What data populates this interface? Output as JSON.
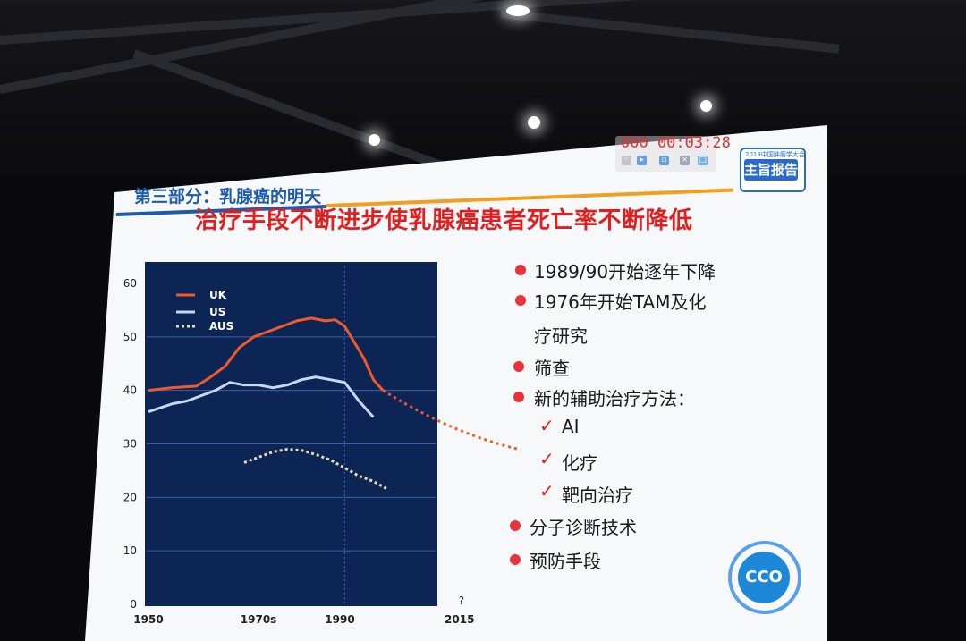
{
  "slide": {
    "section_title": "第三部分：乳腺癌的明天",
    "headline": "治疗手段不断进步使乳腺癌患者死亡率不断降低",
    "timer": "000 00:03:28",
    "badge_top": "2019中国肿瘤学大会",
    "badge_label": "主旨报告",
    "logo_text": "CCO"
  },
  "bullets": [
    {
      "text": "1989/90开始逐年下降",
      "marker": "dot"
    },
    {
      "text": "1976年开始TAM及化",
      "marker": "dot"
    },
    {
      "text": "疗研究",
      "marker": "none"
    },
    {
      "text": "筛查",
      "marker": "dot"
    },
    {
      "text": "新的辅助治疗方法：",
      "marker": "dot"
    },
    {
      "text": "AI",
      "marker": "check"
    },
    {
      "text": "化疗",
      "marker": "check"
    },
    {
      "text": "靶向治疗",
      "marker": "check"
    },
    {
      "text": "分子诊断技术",
      "marker": "dot"
    },
    {
      "text": "预防手段",
      "marker": "dot"
    }
  ],
  "colors": {
    "uk": "#f0592a",
    "us": "#c8d8f0",
    "aus": "#e8dcb0",
    "panel": "#0d2555",
    "accent_red": "#e02020",
    "accent_blue": "#1e5aa8"
  },
  "chart_data": {
    "type": "line",
    "ylim": [
      0,
      60
    ],
    "yticks": [
      "0",
      "10",
      "20",
      "30",
      "40",
      "50",
      "60"
    ],
    "xticks": [
      {
        "label": "1950",
        "x": 1950
      },
      {
        "label": "1970s",
        "x": 1973
      },
      {
        "label": "1990",
        "x": 1990
      },
      {
        "label": "2015",
        "x": 2015
      }
    ],
    "question_mark": "?",
    "series": [
      {
        "name": "UK",
        "x": [
          1950,
          1955,
          1960,
          1963,
          1966,
          1969,
          1972,
          1975,
          1978,
          1981,
          1984,
          1987,
          1989,
          1991,
          1993,
          1995,
          1997,
          1999
        ],
        "y": [
          40,
          40.5,
          40.8,
          42.5,
          44.5,
          48,
          50,
          51,
          52,
          53,
          53.5,
          53,
          53.2,
          52,
          49,
          46,
          42,
          40
        ]
      },
      {
        "name": "US",
        "x": [
          1950,
          1955,
          1958,
          1961,
          1964,
          1967,
          1970,
          1973,
          1976,
          1979,
          1982,
          1985,
          1988,
          1991,
          1994,
          1997
        ],
        "y": [
          36,
          37.5,
          38,
          39,
          40,
          41.5,
          41,
          41,
          40.5,
          41,
          42,
          42.5,
          42,
          41.5,
          38,
          35
        ]
      },
      {
        "name": "AUS",
        "x": [
          1970,
          1973,
          1976,
          1979,
          1982,
          1985,
          1988,
          1991,
          1994,
          1997,
          2000
        ],
        "y": [
          26.5,
          27.5,
          28.5,
          29,
          28.8,
          28,
          27,
          25.5,
          24,
          23,
          21.5
        ]
      }
    ]
  }
}
